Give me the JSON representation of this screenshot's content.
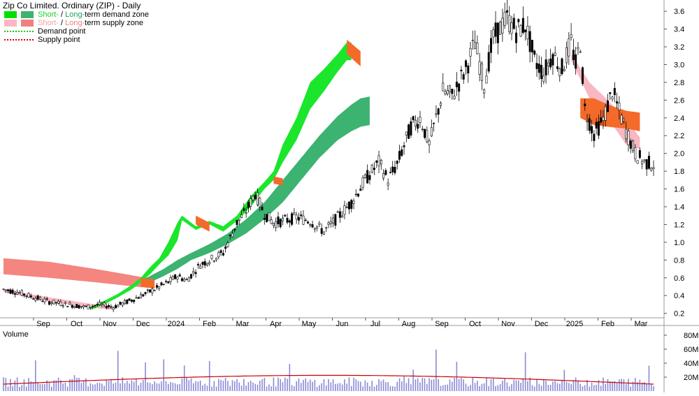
{
  "chart_data": [
    {
      "type": "candlestick",
      "title": "Zip Co Limited. Ordinary (ZIP) - Daily",
      "x_tick_labels": [
        "Sep",
        "Oct",
        "Nov",
        "Dec",
        "2024",
        "Feb",
        "Mar",
        "Apr",
        "May",
        "Jun",
        "Jul",
        "Aug",
        "Sep",
        "Oct",
        "Nov",
        "Dec",
        "2025",
        "Feb",
        "Mar"
      ],
      "ylim": [
        0.15,
        3.68
      ],
      "y_ticks": [
        "0.2",
        "0.4",
        "0.6",
        "0.8",
        "1.0",
        "1.2",
        "1.4",
        "1.6",
        "1.8",
        "2.0",
        "2.2",
        "2.4",
        "2.6",
        "2.8",
        "3.0",
        "3.2",
        "3.4",
        "3.6"
      ],
      "y_tick_values": [
        0.2,
        0.4,
        0.6,
        0.8,
        1.0,
        1.2,
        1.4,
        1.6,
        1.8,
        2.0,
        2.2,
        2.4,
        2.6,
        2.8,
        3.0,
        3.2,
        3.4,
        3.6
      ],
      "legend": [
        {
          "parts": [
            {
              "text": "Short-",
              "color": "#17d12a"
            },
            {
              "text": " / ",
              "color": "#000000"
            },
            {
              "text": "Long-",
              "color": "#1f9e5e"
            },
            {
              "text": "term demand zone",
              "color": "#000000"
            }
          ],
          "swatches": [
            "#00e000",
            "#3cb371"
          ]
        },
        {
          "parts": [
            {
              "text": "Short-",
              "color": "#f4a0a0"
            },
            {
              "text": " / ",
              "color": "#000000"
            },
            {
              "text": "Long-",
              "color": "#f08080"
            },
            {
              "text": "term supply zone",
              "color": "#000000"
            }
          ],
          "swatches": [
            "#ffb6c1",
            "#f08080"
          ]
        },
        {
          "parts": [
            {
              "text": "Demand point",
              "color": "#000000"
            }
          ],
          "dotted": "#00cc00"
        },
        {
          "parts": [
            {
              "text": "Supply point",
              "color": "#000000"
            }
          ],
          "dotted": "#dd0000"
        }
      ],
      "price_path": [
        [
          0.47,
          0
        ],
        [
          0.44,
          6
        ],
        [
          0.39,
          12
        ],
        [
          0.33,
          20
        ],
        [
          0.3,
          28
        ],
        [
          0.27,
          36
        ],
        [
          0.3,
          42
        ],
        [
          0.27,
          48
        ],
        [
          0.35,
          56
        ],
        [
          0.42,
          62
        ],
        [
          0.47,
          66
        ],
        [
          0.55,
          72
        ],
        [
          0.62,
          76
        ],
        [
          0.57,
          80
        ],
        [
          0.75,
          86
        ],
        [
          0.8,
          90
        ],
        [
          0.88,
          96
        ],
        [
          1.22,
          102
        ],
        [
          1.35,
          106
        ],
        [
          1.55,
          110
        ],
        [
          1.32,
          114
        ],
        [
          1.22,
          118
        ],
        [
          1.25,
          124
        ],
        [
          1.28,
          128
        ],
        [
          1.24,
          134
        ],
        [
          1.12,
          140
        ],
        [
          1.28,
          146
        ],
        [
          1.45,
          152
        ],
        [
          1.7,
          158
        ],
        [
          1.9,
          164
        ],
        [
          1.7,
          168
        ],
        [
          1.88,
          172
        ],
        [
          2.3,
          178
        ],
        [
          2.4,
          182
        ],
        [
          2.1,
          186
        ],
        [
          2.7,
          192
        ],
        [
          2.65,
          196
        ],
        [
          2.95,
          202
        ],
        [
          3.25,
          206
        ],
        [
          2.78,
          210
        ],
        [
          3.3,
          214
        ],
        [
          3.52,
          220
        ],
        [
          3.38,
          224
        ],
        [
          3.45,
          228
        ],
        [
          3.05,
          232
        ],
        [
          2.9,
          236
        ],
        [
          3.12,
          240
        ],
        [
          2.95,
          244
        ],
        [
          3.25,
          248
        ],
        [
          3.0,
          250
        ],
        [
          3.25,
          252
        ],
        [
          2.5,
          254
        ],
        [
          2.22,
          258
        ],
        [
          2.38,
          262
        ],
        [
          2.7,
          266
        ],
        [
          2.4,
          270
        ],
        [
          2.25,
          272
        ],
        [
          2.0,
          276
        ],
        [
          1.9,
          280
        ],
        [
          1.88,
          284
        ]
      ],
      "demand_zone_short": [
        [
          0.27,
          0.24,
          38
        ],
        [
          0.34,
          0.3,
          44
        ],
        [
          0.42,
          0.38,
          50
        ],
        [
          0.52,
          0.47,
          56
        ],
        [
          0.6,
          0.55,
          60
        ],
        [
          0.72,
          0.64,
          64
        ],
        [
          0.82,
          0.75,
          68
        ],
        [
          1.0,
          0.85,
          72
        ],
        [
          1.22,
          1.02,
          76
        ],
        [
          1.3,
          1.25,
          78
        ],
        [
          1.18,
          1.14,
          84
        ],
        [
          1.24,
          1.2,
          90
        ],
        [
          1.18,
          1.12,
          96
        ],
        [
          1.3,
          1.24,
          102
        ],
        [
          1.52,
          1.4,
          108
        ],
        [
          1.68,
          1.6,
          114
        ],
        [
          1.8,
          1.7,
          118
        ],
        [
          2.1,
          1.9,
          122
        ],
        [
          2.4,
          2.15,
          128
        ],
        [
          2.8,
          2.5,
          134
        ],
        [
          2.95,
          2.7,
          140
        ],
        [
          3.12,
          2.92,
          146
        ],
        [
          3.25,
          3.05,
          150
        ],
        [
          3.25,
          3.05,
          152
        ]
      ],
      "demand_zone_long": [
        [
          0.57,
          0.5,
          60
        ],
        [
          0.62,
          0.55,
          64
        ],
        [
          0.7,
          0.62,
          70
        ],
        [
          0.8,
          0.7,
          76
        ],
        [
          0.88,
          0.8,
          82
        ],
        [
          0.98,
          0.88,
          90
        ],
        [
          1.1,
          0.98,
          98
        ],
        [
          1.26,
          1.1,
          106
        ],
        [
          1.45,
          1.26,
          114
        ],
        [
          1.7,
          1.45,
          122
        ],
        [
          1.95,
          1.7,
          130
        ],
        [
          2.2,
          1.95,
          138
        ],
        [
          2.42,
          2.15,
          146
        ],
        [
          2.55,
          2.25,
          152
        ],
        [
          2.62,
          2.3,
          156
        ],
        [
          2.64,
          2.32,
          160
        ]
      ],
      "supply_zone_long": [
        [
          0.82,
          0.64,
          0
        ],
        [
          0.78,
          0.6,
          20
        ],
        [
          0.7,
          0.55,
          40
        ],
        [
          0.62,
          0.5,
          58
        ],
        [
          0.58,
          0.48,
          66
        ]
      ],
      "supply_zone_short": [
        [
          0.47,
          0.44,
          0
        ],
        [
          0.38,
          0.33,
          20
        ],
        [
          0.3,
          0.26,
          40
        ],
        [
          0.28,
          0.24,
          48
        ]
      ],
      "volume_axis_labels": [
        "80M",
        "60M",
        "40M",
        "20M"
      ],
      "volume_axis_values": [
        80,
        60,
        40,
        20
      ],
      "volume_label": "Volume"
    }
  ]
}
